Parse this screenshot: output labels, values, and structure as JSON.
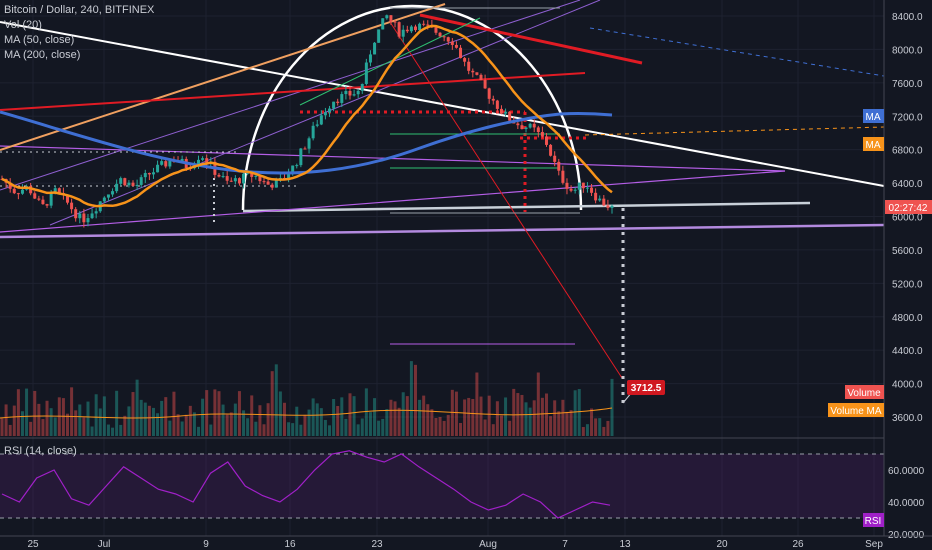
{
  "legend": {
    "symbol": "Bitcoin / Dollar, 240, BITFINEX",
    "vol": "Vol (20)",
    "ma50": "MA (50, close)",
    "ma200": "MA (200, close)",
    "rsi": "RSI (14, close)"
  },
  "price_axis": {
    "ticks": [
      "8400.0",
      "8000.0",
      "7600.0",
      "7200.0",
      "6800.0",
      "6400.0",
      "6000.0",
      "5600.0",
      "5200.0",
      "4800.0",
      "4400.0",
      "4000.0",
      "3600.0"
    ],
    "tick_values": [
      8400,
      8000,
      7600,
      7200,
      6800,
      6400,
      6000,
      5600,
      5200,
      4800,
      4400,
      4000,
      3600
    ],
    "ma_tag": "MA",
    "ma_tag_value": 7200,
    "ma50_tag": "MA",
    "ma50_tag_value": 6800,
    "countdown": "02:27:42",
    "countdown_value": 6130,
    "volume_tag": "Volume",
    "volume_ma_tag": "Volume MA",
    "target_label": "3712.5",
    "target_value": 3712.5
  },
  "rsi_axis": {
    "ticks": [
      "60.0000",
      "40.0000",
      "20.0000"
    ],
    "tick_values": [
      60,
      40,
      20
    ],
    "tag": "RSI",
    "upper": 70,
    "lower": 30
  },
  "time_axis": [
    "25",
    "Jul",
    "9",
    "16",
    "23",
    "Aug",
    "7",
    "13",
    "20",
    "26",
    "Sep"
  ],
  "colors": {
    "background": "#131722",
    "up": "#26a69a",
    "down": "#ef5350",
    "ma50": "#f7931a",
    "ma200": "#3f6fd3",
    "rsi": "#a020c8",
    "red_line": "#e01b24",
    "purple_line": "#b45ee6"
  },
  "chart_data": {
    "type": "candlestick",
    "title": "Bitcoin / Dollar, 240, BITFINEX",
    "ylim": [
      3400,
      8500
    ],
    "grid": true,
    "ohlc_path_approx": [
      6450,
      6300,
      6350,
      6100,
      6300,
      6150,
      5950,
      6100,
      6300,
      6450,
      6350,
      6500,
      6600,
      6700,
      6600,
      6750,
      6550,
      6400,
      6450,
      6500,
      6380,
      6420,
      6600,
      6900,
      7200,
      7400,
      7450,
      7500,
      8100,
      8400,
      8200,
      8300,
      8250,
      8200,
      8100,
      7800,
      7600,
      7400,
      7200,
      7100,
      7050,
      6900,
      6500,
      6300,
      6400,
      6200,
      6100
    ],
    "target": 3712.5,
    "rsi_series_approx": [
      45,
      40,
      55,
      60,
      42,
      38,
      50,
      62,
      55,
      48,
      45,
      40,
      58,
      65,
      50,
      44,
      40,
      48,
      60,
      70,
      72,
      68,
      65,
      70,
      62,
      55,
      48,
      40,
      35,
      38,
      45,
      40,
      30,
      35,
      40,
      38
    ]
  }
}
